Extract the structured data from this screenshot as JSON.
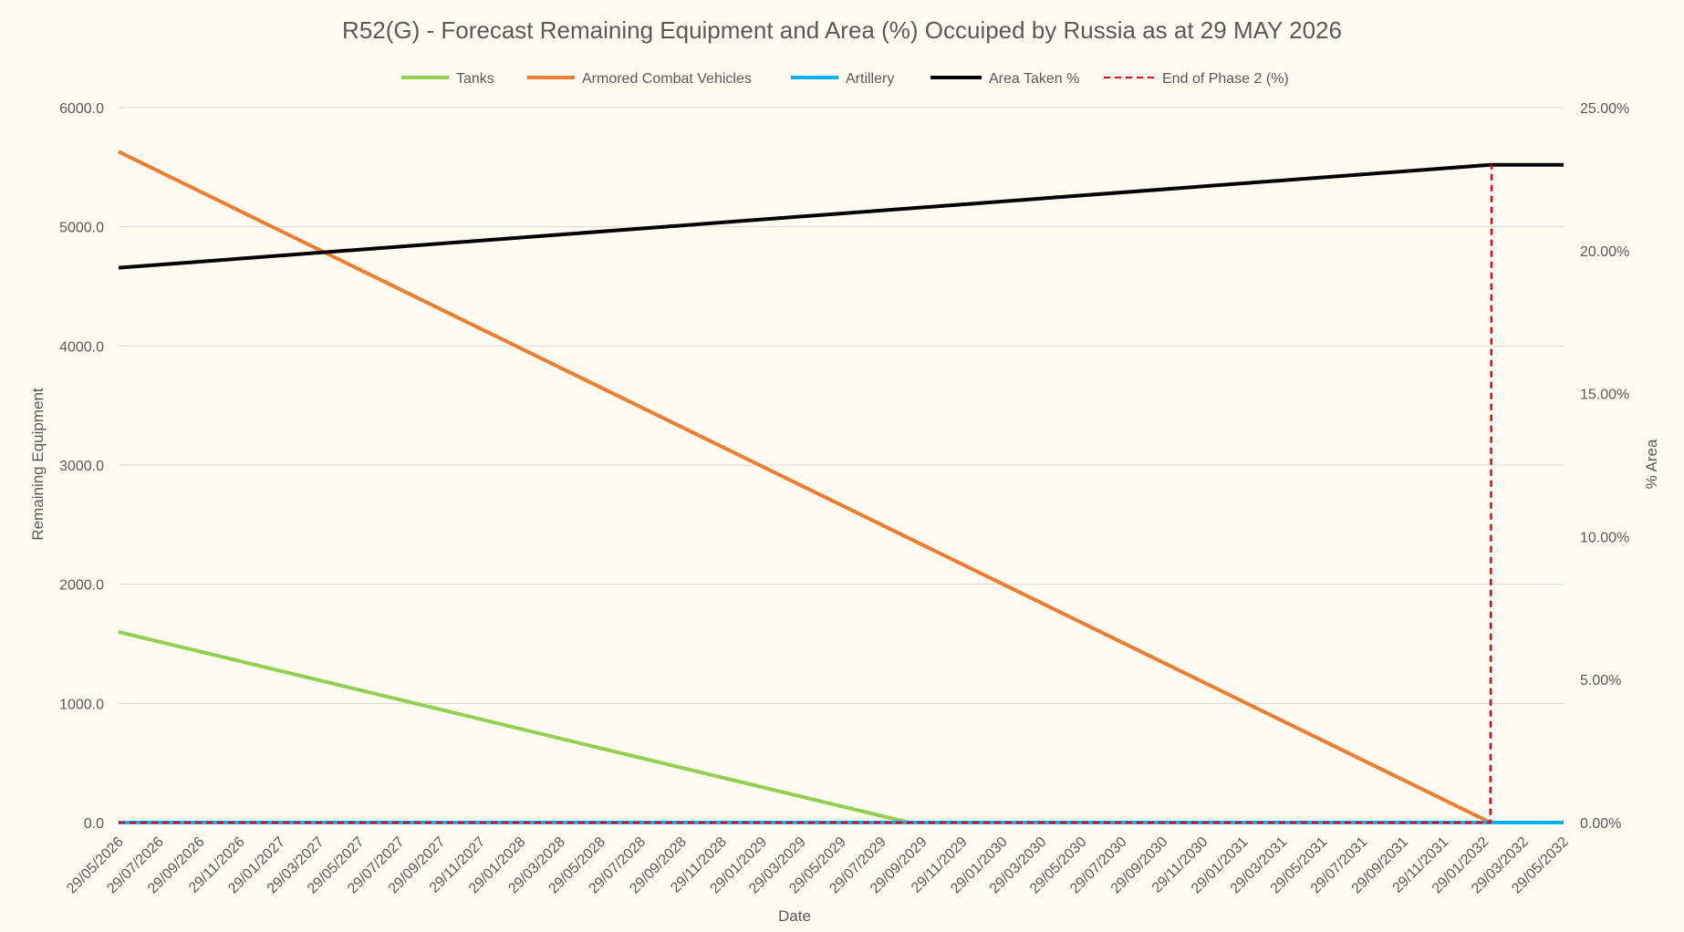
{
  "chart_data": {
    "type": "line",
    "title": "R52(G) - Forecast Remaining Equipment and Area (%) Occuiped by Russia as at 29 MAY 2026",
    "xlabel": "Date",
    "ylabel": "Remaining Equipment",
    "y2label": "% Area",
    "ylim": [
      0,
      6000
    ],
    "y2lim": [
      0,
      25
    ],
    "yticks": [
      "0.0",
      "1000.0",
      "2000.0",
      "3000.0",
      "4000.0",
      "5000.0",
      "6000.0"
    ],
    "y2ticks": [
      "0.00%",
      "5.00%",
      "10.00%",
      "15.00%",
      "20.00%",
      "25.00%"
    ],
    "x": [
      "29/05/2026",
      "29/07/2026",
      "29/09/2026",
      "29/11/2026",
      "29/01/2027",
      "29/03/2027",
      "29/05/2027",
      "29/07/2027",
      "29/09/2027",
      "29/11/2027",
      "29/01/2028",
      "29/03/2028",
      "29/05/2028",
      "29/07/2028",
      "29/09/2028",
      "29/11/2028",
      "29/01/2029",
      "29/03/2029",
      "29/05/2029",
      "29/07/2029",
      "29/09/2029",
      "29/11/2029",
      "29/01/2030",
      "29/03/2030",
      "29/05/2030",
      "29/07/2030",
      "29/09/2030",
      "29/11/2030",
      "29/01/2031",
      "29/03/2031",
      "29/05/2031",
      "29/07/2031",
      "29/09/2031",
      "29/11/2031",
      "29/01/2032",
      "29/03/2032",
      "29/05/2032"
    ],
    "legend_position": "top",
    "grid": true,
    "series": [
      {
        "name": "Tanks",
        "color": "#92d050",
        "axis": "left",
        "style": "solid",
        "points": [
          {
            "x": "29/05/2026",
            "y": 1600
          },
          {
            "x": "09/09/2029",
            "y": 0
          },
          {
            "x": "29/05/2032",
            "y": 0
          }
        ]
      },
      {
        "name": "Armored Combat Vehicles",
        "color": "#ed7d31",
        "axis": "left",
        "style": "solid",
        "points": [
          {
            "x": "29/05/2026",
            "y": 5630
          },
          {
            "x": "08/02/2032",
            "y": 0
          },
          {
            "x": "29/05/2032",
            "y": 0
          }
        ]
      },
      {
        "name": "Artillery",
        "color": "#00b0f0",
        "axis": "left",
        "style": "solid",
        "points": [
          {
            "x": "29/05/2026",
            "y": 0
          },
          {
            "x": "29/05/2032",
            "y": 0
          }
        ]
      },
      {
        "name": "Area Taken %",
        "color": "#000000",
        "axis": "right",
        "style": "solid",
        "points": [
          {
            "x": "29/05/2026",
            "y": 19.4
          },
          {
            "x": "08/02/2032",
            "y": 23.0
          },
          {
            "x": "29/05/2032",
            "y": 23.0
          }
        ]
      },
      {
        "name": "End of Phase 2 (%)",
        "color": "#e0001b",
        "axis": "right",
        "style": "dashed",
        "points": [
          {
            "x": "29/05/2026",
            "y": 0
          },
          {
            "x": "08/02/2032",
            "y": 0
          },
          {
            "x": "10/02/2032",
            "y": 23.0
          }
        ]
      }
    ]
  }
}
